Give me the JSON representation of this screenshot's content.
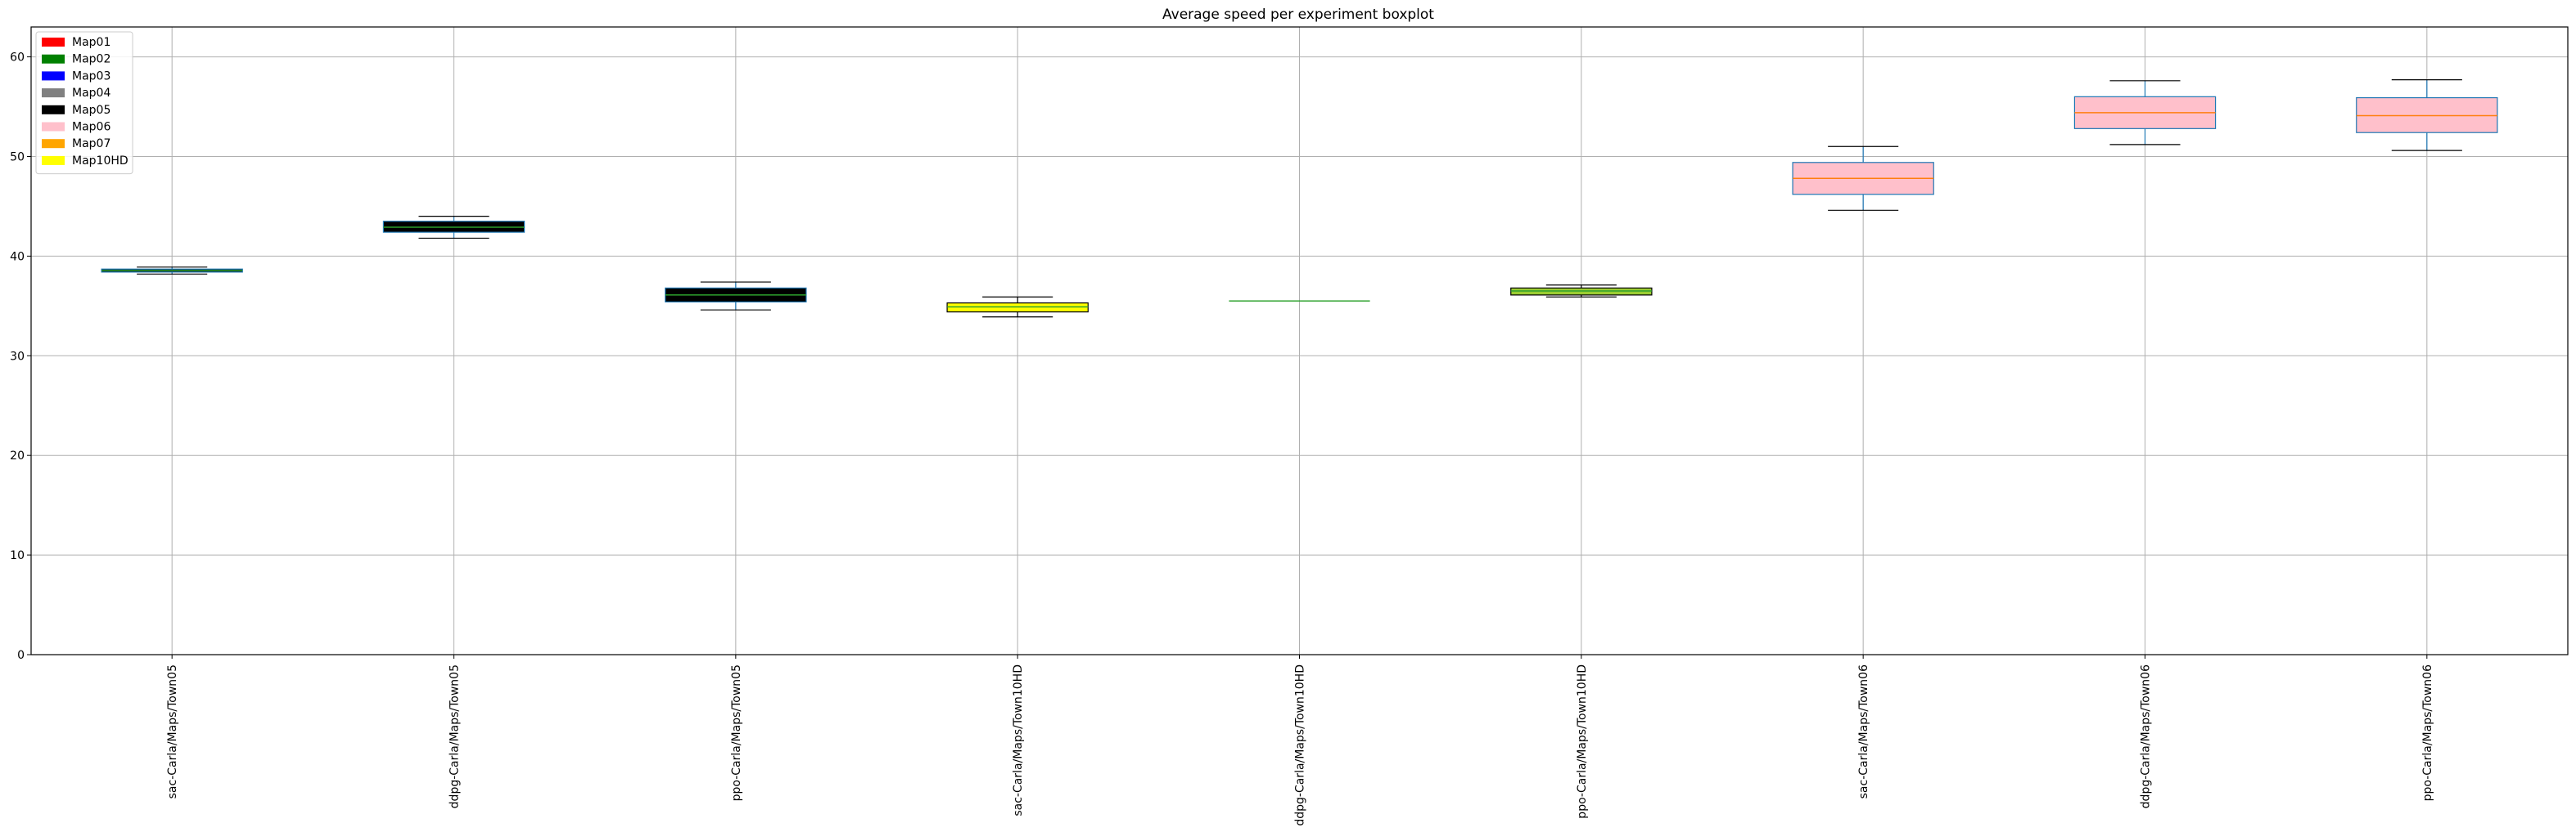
{
  "chart_data": {
    "type": "boxplot",
    "title": "Average speed per experiment boxplot",
    "xlabel": "",
    "ylabel": "",
    "ylim": [
      0,
      63
    ],
    "yticks": [
      0,
      10,
      20,
      30,
      40,
      50,
      60
    ],
    "grid": true,
    "legend_placement": "top-left",
    "legend": [
      {
        "label": "Map01",
        "color": "#ff0000"
      },
      {
        "label": "Map02",
        "color": "#008000"
      },
      {
        "label": "Map03",
        "color": "#0000ff"
      },
      {
        "label": "Map04",
        "color": "#808080"
      },
      {
        "label": "Map05",
        "color": "#000000"
      },
      {
        "label": "Map06",
        "color": "#ffc0cb"
      },
      {
        "label": "Map07",
        "color": "#ffa500"
      },
      {
        "label": "Map10HD",
        "color": "#ffff00"
      }
    ],
    "categories": [
      "sac-Carla/Maps/Town05",
      "ddpg-Carla/Maps/Town05",
      "ppo-Carla/Maps/Town05",
      "sac-Carla/Maps/Town10HD",
      "ddpg-Carla/Maps/Town10HD",
      "ppo-Carla/Maps/Town10HD",
      "sac-Carla/Maps/Town06",
      "ddpg-Carla/Maps/Town06",
      "ppo-Carla/Maps/Town06"
    ],
    "boxes": [
      {
        "whislo": 38.2,
        "q1": 38.4,
        "med": 38.55,
        "q3": 38.7,
        "whishi": 38.9,
        "fill": "#000000",
        "edge": "#1f77b4",
        "median_color": "#2ca02c"
      },
      {
        "whislo": 41.8,
        "q1": 42.4,
        "med": 42.9,
        "q3": 43.5,
        "whishi": 44.0,
        "fill": "#000000",
        "edge": "#1f77b4",
        "median_color": "#2ca02c"
      },
      {
        "whislo": 34.6,
        "q1": 35.4,
        "med": 36.1,
        "q3": 36.8,
        "whishi": 37.4,
        "fill": "#000000",
        "edge": "#1f77b4",
        "median_color": "#2ca02c"
      },
      {
        "whislo": 33.9,
        "q1": 34.4,
        "med": 34.9,
        "q3": 35.3,
        "whishi": 35.9,
        "fill": "#ffff00",
        "edge": "#000000",
        "median_color": "#2ca02c"
      },
      {
        "whislo": 35.5,
        "q1": 35.5,
        "med": 35.5,
        "q3": 35.5,
        "whishi": 35.5,
        "fill": "#ffff00",
        "edge": "#2ca02c",
        "median_color": "#2ca02c"
      },
      {
        "whislo": 35.9,
        "q1": 36.1,
        "med": 36.5,
        "q3": 36.8,
        "whishi": 37.1,
        "fill": "#9acd32",
        "edge": "#000000",
        "median_color": "#2ca02c"
      },
      {
        "whislo": 44.6,
        "q1": 46.2,
        "med": 47.8,
        "q3": 49.4,
        "whishi": 51.0,
        "fill": "#ffc0cb",
        "edge": "#1f77b4",
        "median_color": "#ff7f0e"
      },
      {
        "whislo": 51.2,
        "q1": 52.8,
        "med": 54.4,
        "q3": 56.0,
        "whishi": 57.6,
        "fill": "#ffc0cb",
        "edge": "#1f77b4",
        "median_color": "#ff7f0e"
      },
      {
        "whislo": 50.6,
        "q1": 52.4,
        "med": 54.1,
        "q3": 55.9,
        "whishi": 57.7,
        "fill": "#ffc0cb",
        "edge": "#1f77b4",
        "median_color": "#ff7f0e"
      }
    ]
  }
}
